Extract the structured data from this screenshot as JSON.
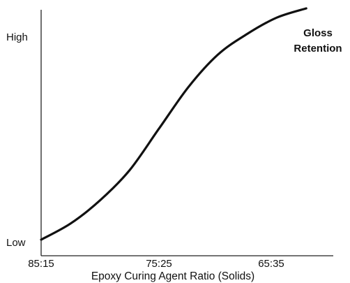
{
  "chart_data": {
    "type": "line",
    "title": "",
    "xlabel": "Epoxy Curing Agent Ratio (Solids)",
    "ylabel": "",
    "x_ticks": [
      "85:15",
      "75:25",
      "65:35"
    ],
    "y_ticks": [
      "Low",
      "High"
    ],
    "series_label_lines": [
      "Gloss",
      "Retention"
    ],
    "x_range": [
      85,
      60
    ],
    "y_range": [
      0,
      1
    ],
    "grid": false,
    "colors": {
      "line": "#111111",
      "axis": "#222222"
    },
    "series": [
      {
        "name": "Gloss Retention",
        "points": [
          {
            "x": 85.0,
            "y": 0.0
          },
          {
            "x": 82.5,
            "y": 0.07
          },
          {
            "x": 80.0,
            "y": 0.17
          },
          {
            "x": 77.5,
            "y": 0.3
          },
          {
            "x": 75.0,
            "y": 0.48
          },
          {
            "x": 72.5,
            "y": 0.66
          },
          {
            "x": 70.0,
            "y": 0.8
          },
          {
            "x": 67.5,
            "y": 0.89
          },
          {
            "x": 65.0,
            "y": 0.96
          },
          {
            "x": 62.5,
            "y": 1.0
          }
        ]
      }
    ]
  }
}
